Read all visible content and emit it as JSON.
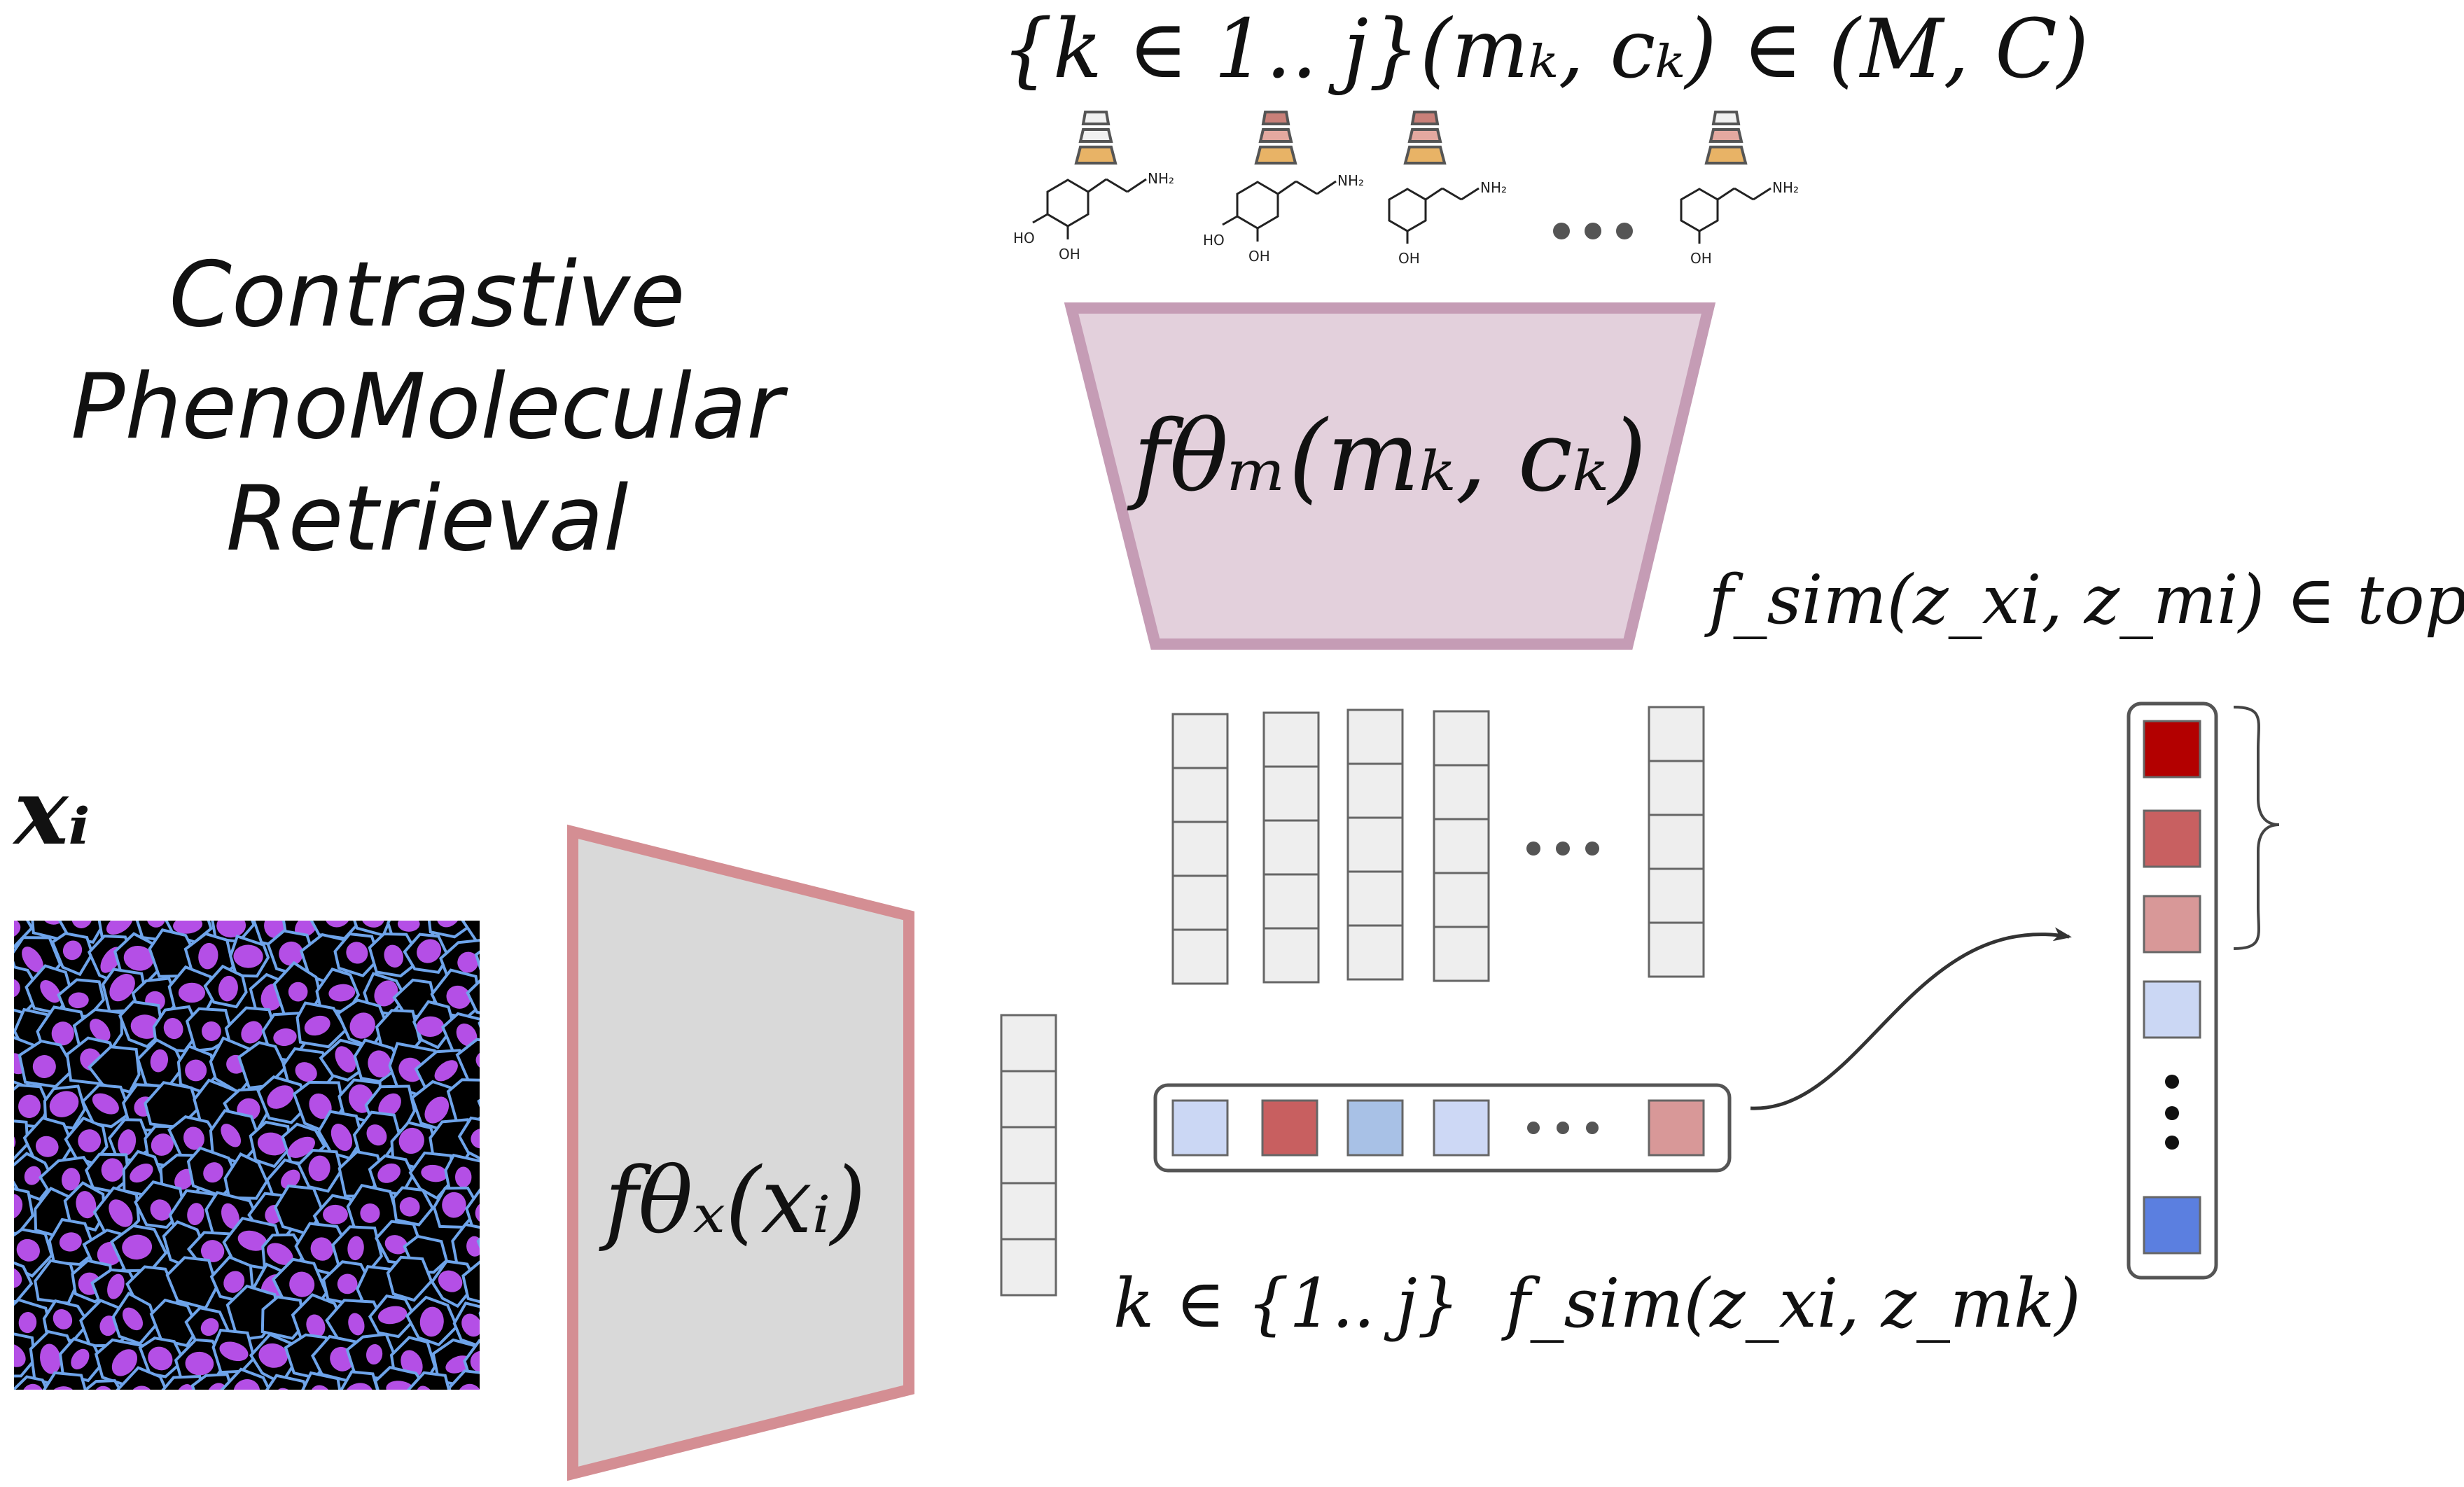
{
  "title": {
    "lines": [
      "Contrastive",
      "PhenoMolecular",
      "Retrieval"
    ]
  },
  "formulas": {
    "molecule_set": "{k ∈ 1.. j}(mₖ, cₖ) ∈ (M, C)",
    "molecule_encoder": "fθₘ(mₖ, cₖ)",
    "image_encoder": "fθₓ(xᵢ)",
    "image_input": "xᵢ",
    "topk": "f_sim(z_xi, z_mi) ∈ top K%",
    "index_range": "k ∈ {1.. j}",
    "similarity": "f_sim(z_xi, z_mk)"
  },
  "molecules": [
    {
      "labels": [
        "HO",
        "OH",
        "NH₂"
      ]
    },
    {
      "labels": [
        "HO",
        "OH",
        "NH₂"
      ]
    },
    {
      "labels": [
        "OH",
        "NH₂"
      ]
    },
    {
      "labels": [
        "OH",
        "NH₂"
      ]
    }
  ],
  "colors": {
    "mol_encoder_fill": "#e3d0dc",
    "mol_encoder_stroke": "#c59cb5",
    "img_encoder_fill": "#d9d9d9",
    "img_encoder_stroke": "#d48e93",
    "embedding_cell": "#eeeeee",
    "cell_border": "#666666",
    "cell_bg": "#000000",
    "cell_nucleus": "#b44fe6",
    "cell_membrane": "#6ea4ea",
    "similarity_scores": [
      "#cbd7f4",
      "#c85f60",
      "#a8c1e6",
      "#cdd8f5",
      "#d89898"
    ],
    "ranked_scores": [
      "#b30000",
      "#c86061",
      "#d89898",
      "#cbd7f4",
      "#5b7fe0"
    ]
  },
  "concentration_icons": [
    "#f1f1f1",
    "#e4a9a0",
    "#c98079",
    "#f1f1f1"
  ]
}
